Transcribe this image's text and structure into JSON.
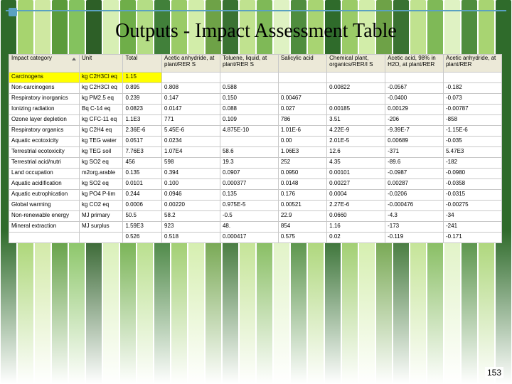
{
  "slide": {
    "title": "Outputs - Impact Assessment Table",
    "page_number": "153",
    "accent_color": "#5aa1c2"
  },
  "background": {
    "blades": [
      "#2f6b2b",
      "#a7d46f",
      "#cfe8a1",
      "#5b9b3b",
      "#84c25e",
      "#2d5f27",
      "#d7efb4",
      "#6fae49",
      "#b4dd85",
      "#41803a",
      "#9acb67",
      "#d2eda9",
      "#6ea247",
      "#3a7232",
      "#c0e28f",
      "#7fb957",
      "#dff2c3",
      "#4f8d3e",
      "#a8d472",
      "#2f6b2b",
      "#9acb67",
      "#d2eda9",
      "#6ea247",
      "#3a7232",
      "#c0e28f",
      "#7fb957",
      "#dff2c3",
      "#4f8d3e",
      "#a8d472",
      "#2f6b2b"
    ]
  },
  "table": {
    "type": "table",
    "header_bg": "#ece9d8",
    "grid_color": "#c8c8c8",
    "highlight_color": "#ffff00",
    "font_size": 8,
    "columns": [
      "Impact category",
      "Unit",
      "Total",
      "Acetic anhydride, at plant/RER S",
      "Toluene, liquid, at plant/RER S",
      "Salicylic acid",
      "Chemical plant, organics/RER/I S",
      "Acetic acid, 98% in H2O, at plant/RER",
      "Acetic anhydride, at plant/RER"
    ],
    "rows": [
      {
        "hl": true,
        "cells": [
          "Carcinogens",
          "kg C2H3Cl eq",
          "1.15",
          "",
          "",
          "",
          "",
          "",
          ""
        ]
      },
      {
        "hl": false,
        "cells": [
          "Non-carcinogens",
          "kg C2H3Cl eq",
          "0.895",
          "0.808",
          "0.588",
          "",
          "0.00822",
          "-0.0567",
          "-0.182"
        ]
      },
      {
        "hl": false,
        "cells": [
          "Respiratory inorganics",
          "kg PM2.5 eq",
          "0.239",
          "0.147",
          "0.150",
          "0.00467",
          "",
          "-0.0400",
          "-0.073"
        ]
      },
      {
        "hl": false,
        "cells": [
          "Ionizing radiation",
          "Bq C-14 eq",
          "0.0823",
          "0.0147",
          "0.088",
          "0.027",
          "0.00185",
          "0.00129",
          "-0.00787"
        ]
      },
      {
        "hl": false,
        "cells": [
          "Ozone layer depletion",
          "kg CFC-11 eq",
          "1.1E3",
          "771",
          "0.109",
          "786",
          "3.51",
          "-206",
          "-858"
        ]
      },
      {
        "hl": false,
        "cells": [
          "Respiratory organics",
          "kg C2H4 eq",
          "2.36E-6",
          "5.45E-6",
          "4.875E-10",
          "1.01E-6",
          "4.22E-9",
          "-9.39E-7",
          "-1.15E-6"
        ]
      },
      {
        "hl": false,
        "cells": [
          "Aquatic ecotoxicity",
          "kg TEG water",
          "0.0517",
          "0.0234",
          "",
          "0.00",
          "2.01E-5",
          "0.00689",
          "-0.035"
        ]
      },
      {
        "hl": false,
        "cells": [
          "Terrestrial ecotoxicity",
          "kg TEG soil",
          "7.76E3",
          "1.07E4",
          "58.6",
          "1.06E3",
          "12.6",
          "-371",
          "5.47E3"
        ]
      },
      {
        "hl": false,
        "cells": [
          "Terrestrial acid/nutri",
          "kg SO2 eq",
          "456",
          "598",
          "19.3",
          "252",
          "4.35",
          "-89.6",
          "-182"
        ]
      },
      {
        "hl": false,
        "cells": [
          "Land occupation",
          "m2org.arable",
          "0.135",
          "0.394",
          "0.0907",
          "0.0950",
          "0.00101",
          "-0.0987",
          "-0.0980"
        ]
      },
      {
        "hl": false,
        "cells": [
          "Aquatic acidification",
          "kg SO2 eq",
          "0.0101",
          "0.100",
          "0.000377",
          "0.0148",
          "0.00227",
          "0.00287",
          "-0.0358"
        ]
      },
      {
        "hl": false,
        "cells": [
          "Aquatic eutrophication",
          "kg PO4 P-lim",
          "0.244",
          "0.0946",
          "0.135",
          "0.176",
          "0.0004",
          "-0.0206",
          "-0.0315"
        ]
      },
      {
        "hl": false,
        "cells": [
          "Global warming",
          "kg CO2 eq",
          "0.0006",
          "0.00220",
          "0.975E-5",
          "0.00521",
          "2.27E-6",
          "-0.000476",
          "-0.00275"
        ]
      },
      {
        "hl": false,
        "cells": [
          "Non-renewable energy",
          "MJ primary",
          "50.5",
          "58.2",
          "-0.5",
          "22.9",
          "0.0660",
          "-4.3",
          "-34"
        ]
      },
      {
        "hl": false,
        "cells": [
          "Mineral extraction",
          "MJ surplus",
          "1.59E3",
          "923",
          "48.",
          "854",
          "1.16",
          "-173",
          "-241"
        ]
      },
      {
        "hl": false,
        "cells": [
          "",
          "",
          "0.526",
          "0.518",
          "0.000417",
          "0.575",
          "0.02",
          "-0.119",
          "-0.171"
        ]
      }
    ]
  }
}
